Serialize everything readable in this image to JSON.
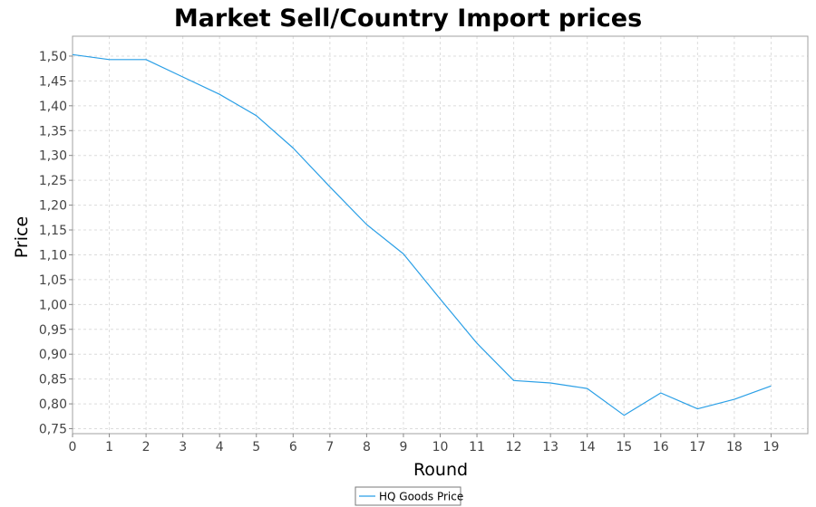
{
  "chart_data": {
    "type": "line",
    "title": "Market Sell/Country Import prices",
    "xlabel": "Round",
    "ylabel": "Price",
    "xlim": [
      0,
      20
    ],
    "ylim": [
      0.74,
      1.54
    ],
    "x_ticks": [
      "0",
      "1",
      "2",
      "3",
      "4",
      "5",
      "6",
      "7",
      "8",
      "9",
      "10",
      "11",
      "12",
      "13",
      "14",
      "15",
      "16",
      "17",
      "18",
      "19"
    ],
    "y_ticks": [
      "0,75",
      "0,80",
      "0,85",
      "0,90",
      "0,95",
      "1,00",
      "1,05",
      "1,10",
      "1,15",
      "1,20",
      "1,25",
      "1,30",
      "1,35",
      "1,40",
      "1,45",
      "1,50"
    ],
    "grid": true,
    "legend": "bottom-center",
    "series": [
      {
        "name": "HQ Goods Price",
        "color": "#2a9fe6",
        "x": [
          0,
          1,
          2,
          3,
          4,
          5,
          6,
          7,
          8,
          9,
          10,
          11,
          12,
          13,
          14,
          15,
          16,
          17,
          18,
          19
        ],
        "values": [
          1.503,
          1.493,
          1.493,
          1.458,
          1.423,
          1.38,
          1.315,
          1.237,
          1.161,
          1.102,
          1.011,
          0.922,
          0.847,
          0.842,
          0.831,
          0.777,
          0.822,
          0.79,
          0.809,
          0.836
        ]
      }
    ]
  }
}
